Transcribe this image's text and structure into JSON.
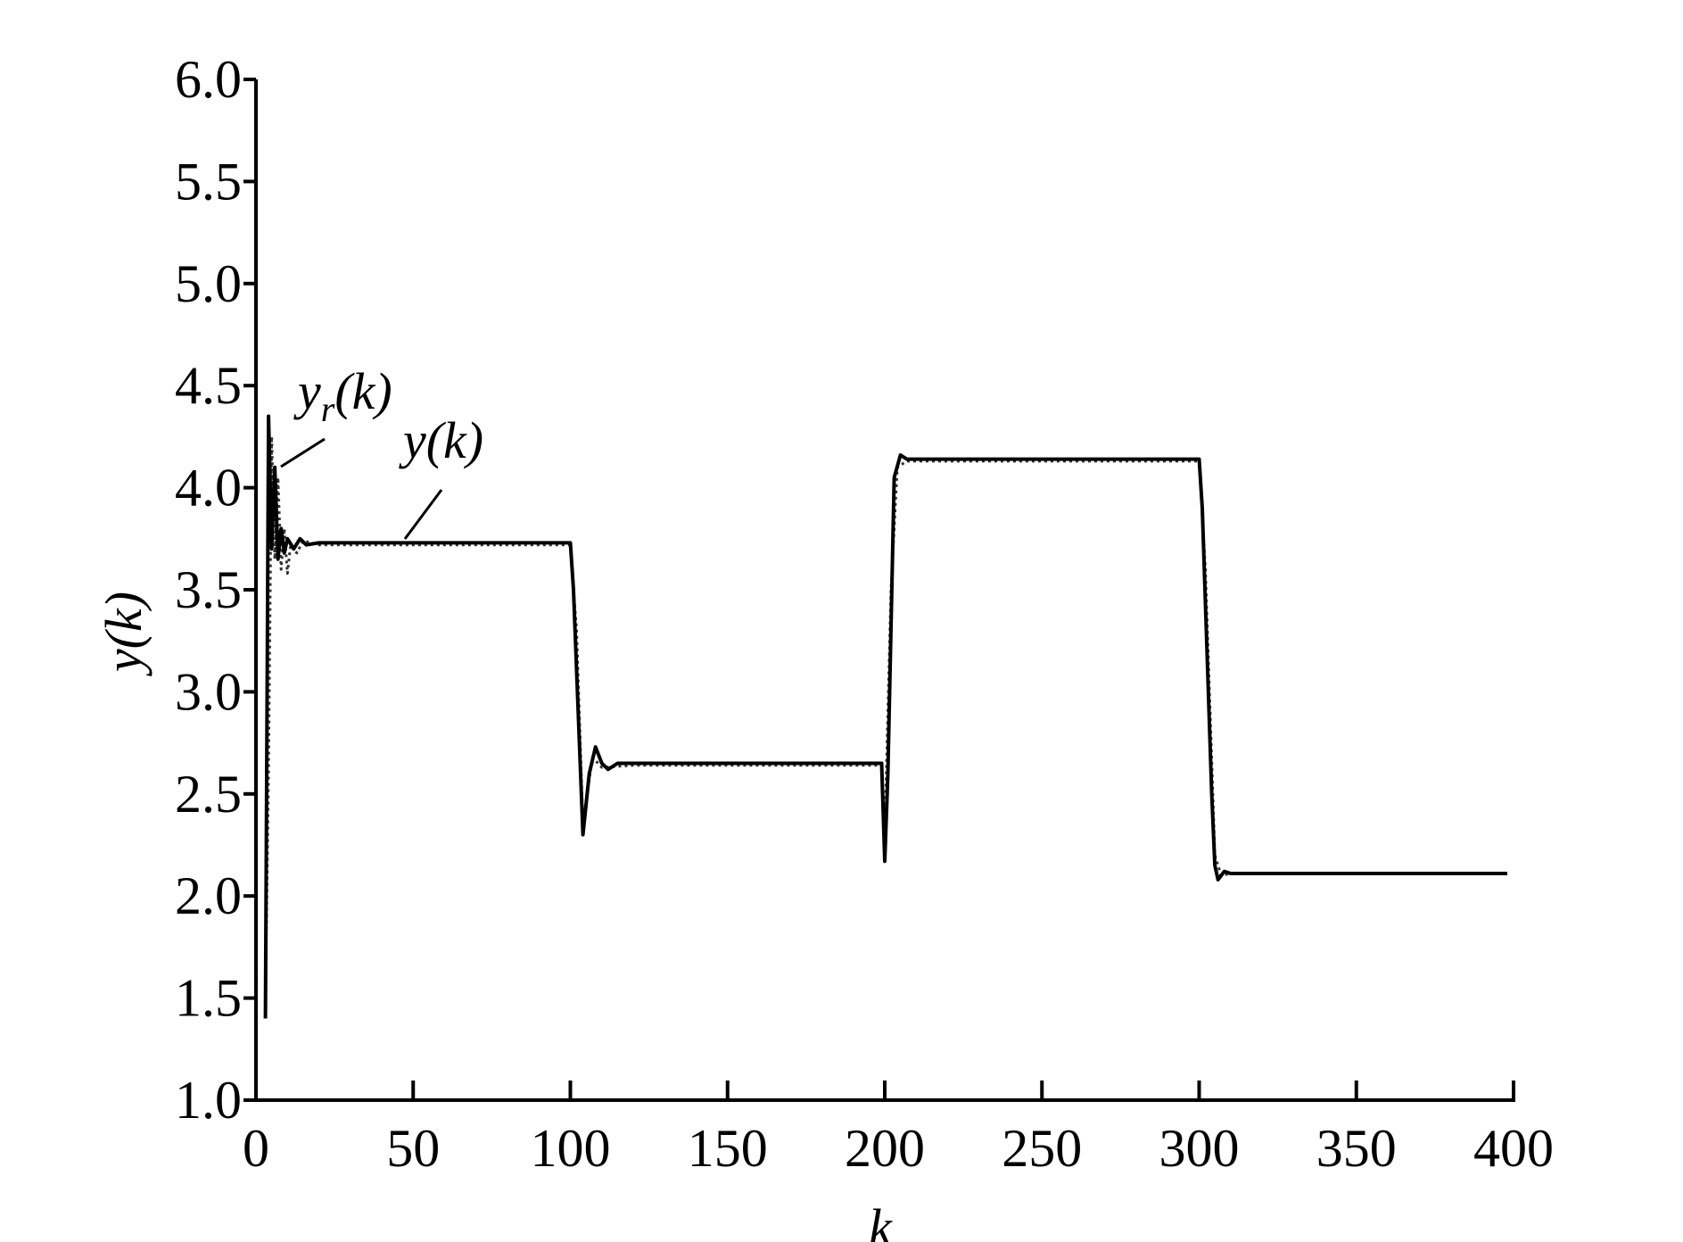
{
  "chart_data": {
    "type": "line",
    "x_label": "k",
    "y_label": "y(k)",
    "xlim": [
      0,
      400
    ],
    "ylim": [
      1.0,
      6.0
    ],
    "xticks": [
      0,
      50,
      100,
      150,
      200,
      250,
      300,
      350,
      400
    ],
    "yticks": [
      {
        "value": 1.0,
        "label": "1.0"
      },
      {
        "value": 1.5,
        "label": "1.5"
      },
      {
        "value": 2.0,
        "label": "2.0"
      },
      {
        "value": 2.5,
        "label": "2.5"
      },
      {
        "value": 3.0,
        "label": "3.0"
      },
      {
        "value": 3.5,
        "label": "3.5"
      },
      {
        "value": 4.0,
        "label": "4.0"
      },
      {
        "value": 4.5,
        "label": "4.5"
      },
      {
        "value": 5.0,
        "label": "5.0"
      },
      {
        "value": 5.5,
        "label": "5.5"
      },
      {
        "value": 6.0,
        "label": "6.0"
      }
    ],
    "series": [
      {
        "name": "y(k)",
        "color": "#000000",
        "dash": "solid",
        "x": [
          3,
          4,
          5,
          6,
          7,
          8,
          9,
          10,
          12,
          14,
          16,
          20,
          100,
          101,
          104,
          106,
          108,
          110,
          112,
          115,
          120,
          199,
          200,
          201,
          203,
          205,
          207,
          300,
          301,
          304,
          305,
          306,
          308,
          310,
          398
        ],
        "values": [
          1.4,
          4.35,
          3.7,
          4.1,
          3.65,
          3.8,
          3.68,
          3.75,
          3.7,
          3.75,
          3.72,
          3.73,
          3.73,
          3.5,
          2.3,
          2.6,
          2.73,
          2.65,
          2.62,
          2.65,
          2.65,
          2.65,
          2.17,
          2.6,
          4.05,
          4.16,
          4.14,
          4.14,
          3.9,
          2.5,
          2.15,
          2.08,
          2.12,
          2.11,
          2.11
        ]
      },
      {
        "name": "y",
        "name_subscript": "r",
        "name_suffix": "(k)",
        "color": "#333333",
        "dash": "dotted",
        "x": [
          3,
          4,
          5,
          6,
          7,
          8,
          9,
          10,
          11,
          13,
          15,
          20,
          100,
          102,
          104,
          107,
          110,
          120,
          199,
          200,
          202,
          204,
          207,
          300,
          302,
          305,
          307,
          310,
          398
        ],
        "values": [
          1.5,
          2.6,
          4.25,
          3.65,
          4.05,
          3.6,
          3.8,
          3.58,
          3.72,
          3.68,
          3.74,
          3.72,
          3.72,
          3.3,
          2.35,
          2.68,
          2.63,
          2.64,
          2.64,
          2.3,
          3.5,
          4.1,
          4.13,
          4.13,
          3.6,
          2.2,
          2.1,
          2.11,
          2.11
        ]
      }
    ]
  }
}
